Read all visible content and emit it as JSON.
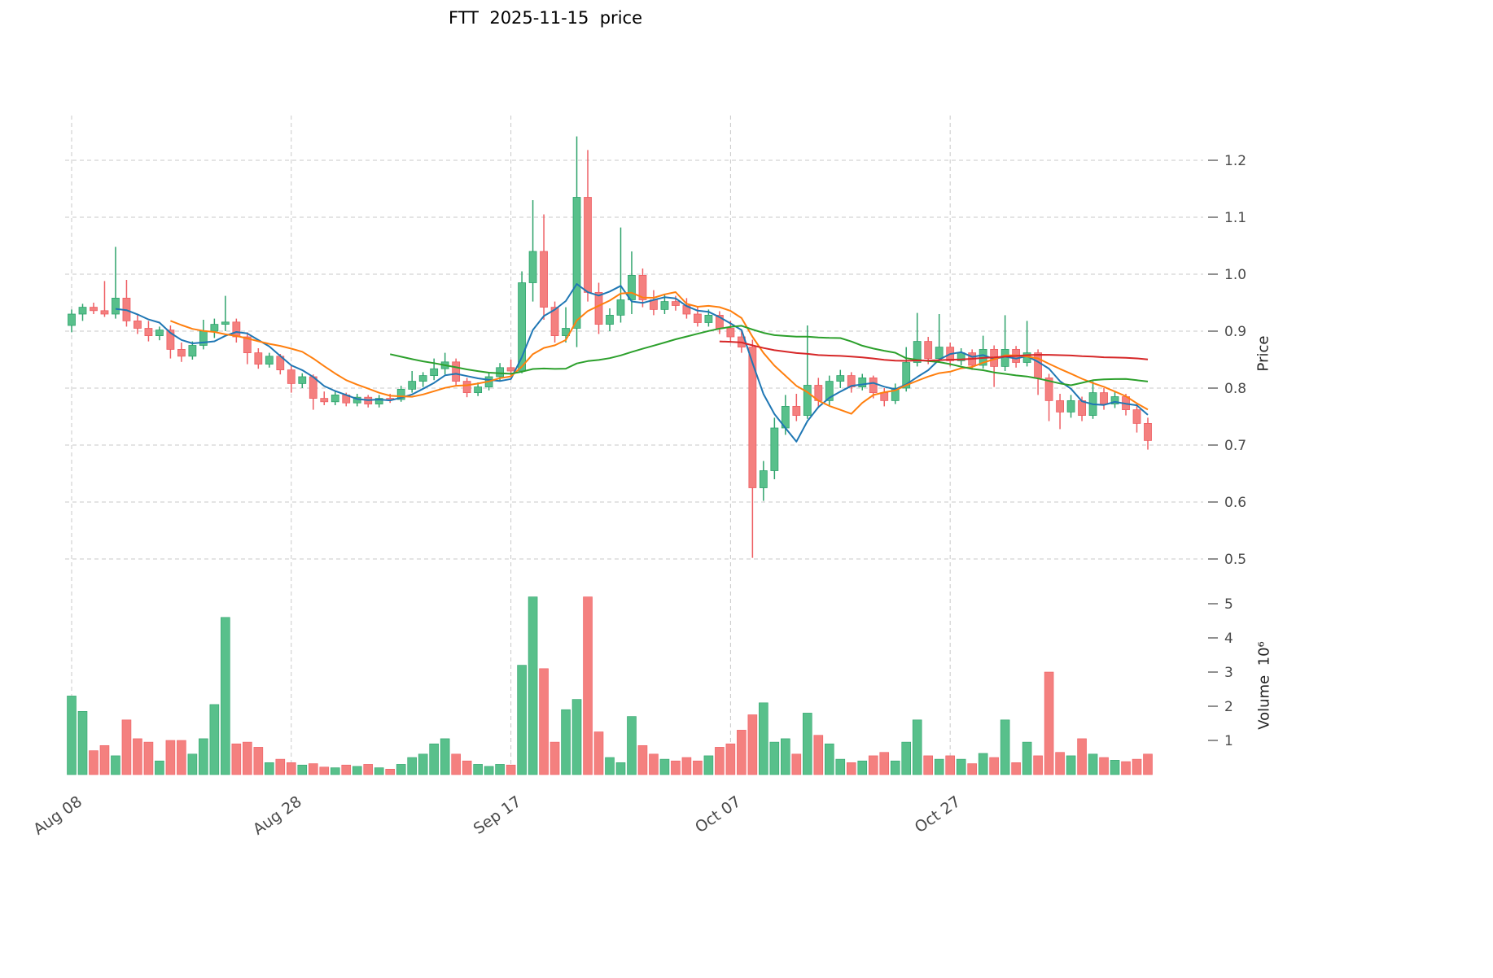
{
  "chart_data": {
    "type": "candlestick",
    "title": "FTT  2025-11-15  price",
    "symbol": "FTT",
    "as_of_date": "2025-11-15",
    "grid": true,
    "legend": false,
    "x_tick_labels": [
      "Aug 08",
      "Aug 28",
      "Sep 17",
      "Oct 07",
      "Oct 27"
    ],
    "x_tick_indices": [
      0,
      20,
      40,
      60,
      80
    ],
    "price_axis": {
      "label": "Price",
      "ticks": [
        0.5,
        0.6,
        0.7,
        0.8,
        0.9,
        1.0,
        1.1,
        1.2
      ],
      "range": [
        0.47,
        1.28
      ]
    },
    "volume_axis": {
      "label": "Volume  10⁶",
      "ticks": [
        1,
        2,
        3,
        4,
        5
      ],
      "range": [
        0,
        5.4
      ],
      "unit_multiplier": 1000000
    },
    "colors": {
      "up": "#58c08b",
      "up_edge": "#2fa36c",
      "down": "#f4807f",
      "down_edge": "#ee5e63",
      "ma_blue": "#1f77b4",
      "ma_orange": "#ff7f0e",
      "ma_green": "#2ca02c",
      "ma_red": "#d62728",
      "grid": "#c9c9c9",
      "tick_text": "#4a4a4a",
      "background": "#ffffff"
    },
    "moving_averages": [
      {
        "name": "MA5",
        "window": 5,
        "color": "#1f77b4"
      },
      {
        "name": "MA10",
        "window": 10,
        "color": "#ff7f0e"
      },
      {
        "name": "MA30",
        "window": 30,
        "color": "#2ca02c"
      },
      {
        "name": "MA60",
        "window": 60,
        "color": "#d62728"
      }
    ],
    "ohlcv_columns": [
      "date",
      "open",
      "high",
      "low",
      "close",
      "volume_millions"
    ],
    "ohlcv": [
      [
        "Aug 08",
        0.91,
        0.938,
        0.898,
        0.93,
        2.3
      ],
      [
        "Aug 09",
        0.93,
        0.948,
        0.918,
        0.942,
        1.85
      ],
      [
        "Aug 10",
        0.942,
        0.95,
        0.93,
        0.936,
        0.7
      ],
      [
        "Aug 11",
        0.936,
        0.988,
        0.925,
        0.93,
        0.85
      ],
      [
        "Aug 12",
        0.93,
        1.048,
        0.922,
        0.958,
        0.55
      ],
      [
        "Aug 13",
        0.958,
        0.99,
        0.908,
        0.918,
        1.6
      ],
      [
        "Aug 14",
        0.918,
        0.93,
        0.895,
        0.905,
        1.05
      ],
      [
        "Aug 15",
        0.905,
        0.918,
        0.882,
        0.892,
        0.95
      ],
      [
        "Aug 16",
        0.892,
        0.908,
        0.884,
        0.902,
        0.4
      ],
      [
        "Aug 17",
        0.902,
        0.91,
        0.852,
        0.868,
        1.0
      ],
      [
        "Aug 18",
        0.868,
        0.88,
        0.846,
        0.856,
        1.0
      ],
      [
        "Aug 19",
        0.856,
        0.882,
        0.85,
        0.875,
        0.6
      ],
      [
        "Aug 20",
        0.875,
        0.92,
        0.868,
        0.9,
        1.05
      ],
      [
        "Aug 21",
        0.9,
        0.922,
        0.888,
        0.912,
        2.05
      ],
      [
        "Aug 22",
        0.912,
        0.962,
        0.9,
        0.916,
        4.6
      ],
      [
        "Aug 23",
        0.916,
        0.922,
        0.88,
        0.89,
        0.9
      ],
      [
        "Aug 24",
        0.89,
        0.898,
        0.842,
        0.862,
        0.95
      ],
      [
        "Aug 25",
        0.862,
        0.87,
        0.834,
        0.842,
        0.8
      ],
      [
        "Aug 26",
        0.842,
        0.862,
        0.836,
        0.856,
        0.35
      ],
      [
        "Aug 27",
        0.856,
        0.86,
        0.824,
        0.832,
        0.45
      ],
      [
        "Aug 28",
        0.832,
        0.84,
        0.792,
        0.808,
        0.35
      ],
      [
        "Aug 29",
        0.808,
        0.826,
        0.8,
        0.82,
        0.28
      ],
      [
        "Aug 30",
        0.82,
        0.824,
        0.762,
        0.782,
        0.32
      ],
      [
        "Aug 31",
        0.782,
        0.794,
        0.77,
        0.776,
        0.22
      ],
      [
        "Sep 01",
        0.776,
        0.794,
        0.77,
        0.788,
        0.2
      ],
      [
        "Sep 02",
        0.788,
        0.792,
        0.768,
        0.774,
        0.28
      ],
      [
        "Sep 03",
        0.774,
        0.79,
        0.768,
        0.784,
        0.24
      ],
      [
        "Sep 04",
        0.784,
        0.788,
        0.766,
        0.772,
        0.3
      ],
      [
        "Sep 05",
        0.772,
        0.788,
        0.766,
        0.782,
        0.2
      ],
      [
        "Sep 06",
        0.782,
        0.79,
        0.774,
        0.78,
        0.16
      ],
      [
        "Sep 07",
        0.78,
        0.804,
        0.776,
        0.798,
        0.3
      ],
      [
        "Sep 08",
        0.798,
        0.83,
        0.792,
        0.812,
        0.5
      ],
      [
        "Sep 09",
        0.812,
        0.828,
        0.802,
        0.822,
        0.6
      ],
      [
        "Sep 10",
        0.822,
        0.852,
        0.814,
        0.834,
        0.9
      ],
      [
        "Sep 11",
        0.834,
        0.862,
        0.824,
        0.846,
        1.05
      ],
      [
        "Sep 12",
        0.846,
        0.852,
        0.804,
        0.812,
        0.6
      ],
      [
        "Sep 13",
        0.812,
        0.818,
        0.784,
        0.792,
        0.4
      ],
      [
        "Sep 14",
        0.792,
        0.81,
        0.786,
        0.802,
        0.3
      ],
      [
        "Sep 15",
        0.802,
        0.826,
        0.796,
        0.82,
        0.24
      ],
      [
        "Sep 16",
        0.82,
        0.844,
        0.812,
        0.836,
        0.3
      ],
      [
        "Sep 17",
        0.836,
        0.85,
        0.82,
        0.83,
        0.28
      ],
      [
        "Sep 18",
        0.83,
        1.005,
        0.826,
        0.985,
        3.2
      ],
      [
        "Sep 19",
        0.985,
        1.13,
        0.952,
        1.04,
        5.2
      ],
      [
        "Sep 20",
        1.04,
        1.105,
        0.92,
        0.942,
        3.1
      ],
      [
        "Sep 21",
        0.942,
        0.952,
        0.88,
        0.892,
        0.95
      ],
      [
        "Sep 22",
        0.892,
        0.942,
        0.88,
        0.905,
        1.9
      ],
      [
        "Sep 23",
        0.905,
        1.242,
        0.872,
        1.135,
        2.2
      ],
      [
        "Sep 24",
        1.135,
        1.218,
        0.952,
        0.968,
        5.2
      ],
      [
        "Sep 25",
        0.968,
        0.985,
        0.895,
        0.912,
        1.25
      ],
      [
        "Sep 26",
        0.912,
        0.94,
        0.9,
        0.928,
        0.5
      ],
      [
        "Sep 27",
        0.928,
        1.082,
        0.915,
        0.955,
        0.35
      ],
      [
        "Sep 28",
        0.955,
        1.04,
        0.93,
        0.998,
        1.7
      ],
      [
        "Sep 29",
        0.998,
        1.01,
        0.942,
        0.955,
        0.85
      ],
      [
        "Sep 30",
        0.955,
        0.972,
        0.928,
        0.938,
        0.6
      ],
      [
        "Oct 01",
        0.938,
        0.965,
        0.93,
        0.952,
        0.45
      ],
      [
        "Oct 02",
        0.952,
        0.962,
        0.936,
        0.945,
        0.4
      ],
      [
        "Oct 03",
        0.945,
        0.958,
        0.922,
        0.93,
        0.5
      ],
      [
        "Oct 04",
        0.93,
        0.942,
        0.908,
        0.915,
        0.4
      ],
      [
        "Oct 05",
        0.915,
        0.938,
        0.908,
        0.928,
        0.55
      ],
      [
        "Oct 06",
        0.928,
        0.935,
        0.895,
        0.905,
        0.8
      ],
      [
        "Oct 07",
        0.905,
        0.918,
        0.882,
        0.89,
        0.9
      ],
      [
        "Oct 08",
        0.89,
        0.9,
        0.862,
        0.872,
        1.3
      ],
      [
        "Oct 09",
        0.872,
        0.885,
        0.502,
        0.625,
        1.75
      ],
      [
        "Oct 10",
        0.625,
        0.672,
        0.602,
        0.655,
        2.1
      ],
      [
        "Oct 11",
        0.655,
        0.748,
        0.64,
        0.73,
        0.95
      ],
      [
        "Oct 12",
        0.73,
        0.788,
        0.718,
        0.768,
        1.05
      ],
      [
        "Oct 13",
        0.768,
        0.79,
        0.742,
        0.752,
        0.6
      ],
      [
        "Oct 14",
        0.752,
        0.91,
        0.746,
        0.805,
        1.8
      ],
      [
        "Oct 15",
        0.805,
        0.818,
        0.765,
        0.778,
        1.15
      ],
      [
        "Oct 16",
        0.778,
        0.822,
        0.77,
        0.812,
        0.9
      ],
      [
        "Oct 17",
        0.812,
        0.832,
        0.8,
        0.822,
        0.45
      ],
      [
        "Oct 18",
        0.822,
        0.828,
        0.792,
        0.802,
        0.35
      ],
      [
        "Oct 19",
        0.802,
        0.825,
        0.796,
        0.818,
        0.4
      ],
      [
        "Oct 20",
        0.818,
        0.822,
        0.782,
        0.792,
        0.55
      ],
      [
        "Oct 21",
        0.792,
        0.8,
        0.768,
        0.778,
        0.65
      ],
      [
        "Oct 22",
        0.778,
        0.808,
        0.772,
        0.8,
        0.4
      ],
      [
        "Oct 23",
        0.8,
        0.872,
        0.794,
        0.845,
        0.95
      ],
      [
        "Oct 24",
        0.845,
        0.932,
        0.838,
        0.882,
        1.6
      ],
      [
        "Oct 25",
        0.882,
        0.89,
        0.842,
        0.852,
        0.55
      ],
      [
        "Oct 26",
        0.852,
        0.93,
        0.846,
        0.872,
        0.45
      ],
      [
        "Oct 27",
        0.872,
        0.88,
        0.838,
        0.848,
        0.55
      ],
      [
        "Oct 28",
        0.848,
        0.87,
        0.84,
        0.862,
        0.45
      ],
      [
        "Oct 29",
        0.862,
        0.868,
        0.832,
        0.84,
        0.32
      ],
      [
        "Oct 30",
        0.84,
        0.892,
        0.834,
        0.868,
        0.62
      ],
      [
        "Oct 31",
        0.868,
        0.875,
        0.802,
        0.838,
        0.5
      ],
      [
        "Nov 01",
        0.838,
        0.928,
        0.83,
        0.868,
        1.6
      ],
      [
        "Nov 02",
        0.868,
        0.874,
        0.836,
        0.845,
        0.35
      ],
      [
        "Nov 03",
        0.845,
        0.918,
        0.838,
        0.862,
        0.95
      ],
      [
        "Nov 04",
        0.862,
        0.868,
        0.788,
        0.818,
        0.55
      ],
      [
        "Nov 05",
        0.818,
        0.825,
        0.742,
        0.778,
        3.0
      ],
      [
        "Nov 06",
        0.778,
        0.79,
        0.728,
        0.758,
        0.65
      ],
      [
        "Nov 07",
        0.758,
        0.788,
        0.748,
        0.778,
        0.55
      ],
      [
        "Nov 08",
        0.778,
        0.785,
        0.742,
        0.752,
        1.05
      ],
      [
        "Nov 09",
        0.752,
        0.812,
        0.746,
        0.792,
        0.6
      ],
      [
        "Nov 10",
        0.792,
        0.8,
        0.762,
        0.772,
        0.5
      ],
      [
        "Nov 11",
        0.772,
        0.795,
        0.765,
        0.785,
        0.42
      ],
      [
        "Nov 12",
        0.785,
        0.79,
        0.752,
        0.762,
        0.38
      ],
      [
        "Nov 13",
        0.762,
        0.772,
        0.722,
        0.738,
        0.45
      ],
      [
        "Nov 14",
        0.738,
        0.748,
        0.692,
        0.708,
        0.6
      ]
    ]
  }
}
